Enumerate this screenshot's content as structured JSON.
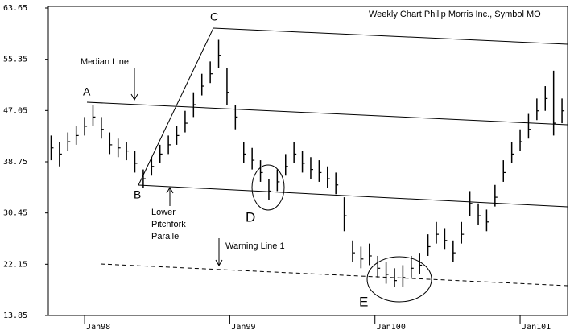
{
  "chart_data": {
    "type": "ohlc",
    "title": "Weekly Chart Philip Morris Inc., Symbol MO",
    "annotations": [
      "A",
      "B",
      "C",
      "D",
      "E",
      "Median Line",
      "Lower",
      "Pitchfork",
      "Parallel",
      "Warning Line 1"
    ],
    "x": [
      -12,
      -9,
      -6,
      -3,
      0,
      3,
      6,
      9,
      12,
      15,
      18,
      21,
      24,
      27,
      30,
      33,
      36,
      39,
      42,
      45,
      48,
      51,
      54,
      57,
      60,
      63,
      66,
      69,
      72,
      75,
      78,
      81,
      84,
      87,
      90,
      93,
      96,
      99,
      102,
      105,
      108,
      111,
      114,
      117,
      120,
      123,
      126,
      129,
      132,
      135,
      138,
      141,
      144,
      147,
      150,
      153,
      156,
      159,
      162,
      165,
      168,
      171
    ],
    "high": [
      43,
      42,
      43.5,
      44.5,
      46,
      48,
      46,
      43.5,
      42.5,
      42,
      40.5,
      37.5,
      39.5,
      41.5,
      43,
      44.5,
      47,
      50,
      53,
      55,
      58.5,
      54,
      48,
      42,
      41,
      39,
      36,
      37.5,
      40,
      42,
      40.5,
      39.5,
      39,
      38,
      37,
      33,
      26,
      25,
      25.5,
      23.5,
      22.5,
      21.5,
      22,
      23.5,
      24,
      27,
      29,
      28,
      26,
      29,
      34,
      32,
      31,
      35,
      39,
      42,
      44,
      46.5,
      49,
      51,
      53.5,
      49
    ],
    "low": [
      39,
      38,
      40.5,
      41.5,
      43,
      44.5,
      42.5,
      40,
      39.5,
      39,
      37,
      34.5,
      36.5,
      38.5,
      40,
      41.5,
      43.5,
      46,
      49.5,
      51.5,
      54,
      48,
      44,
      38.5,
      37.5,
      35.5,
      32.5,
      34,
      36.5,
      38.5,
      37,
      36,
      35.5,
      34.5,
      33.5,
      27.5,
      22.5,
      21.5,
      22,
      20,
      19,
      18.5,
      18.5,
      20,
      20.5,
      23.5,
      25.5,
      24.5,
      22.5,
      25.5,
      30,
      28.5,
      27.5,
      31.5,
      35.5,
      38.5,
      40.5,
      42.5,
      45.5,
      47,
      43,
      45
    ],
    "close": [
      41,
      40,
      42,
      43,
      44.5,
      46,
      44,
      41.5,
      41,
      40.5,
      38.5,
      36,
      38,
      40,
      41.5,
      43,
      45,
      48,
      51,
      53,
      56,
      50,
      46,
      40,
      39,
      37,
      34,
      35.5,
      38,
      40,
      38.5,
      37.5,
      37,
      36,
      35,
      30,
      24,
      23,
      23.5,
      21.5,
      20.5,
      19.5,
      20,
      21.5,
      22,
      25,
      27,
      26,
      24,
      27,
      32,
      30,
      29,
      33,
      37,
      40,
      42,
      44,
      47,
      49,
      45,
      47
    ],
    "color": "#000000",
    "xlim": [
      -13,
      173
    ],
    "xticks": [
      {
        "value": 0,
        "label": "Jan98"
      },
      {
        "value": 52,
        "label": "Jan99"
      },
      {
        "value": 104,
        "label": "Jan100"
      },
      {
        "value": 156,
        "label": "Jan101"
      }
    ],
    "ylim": [
      13.85,
      63.65
    ],
    "yticks": [
      13.85,
      22.15,
      30.45,
      38.75,
      47.05,
      55.35,
      63.65
    ]
  }
}
